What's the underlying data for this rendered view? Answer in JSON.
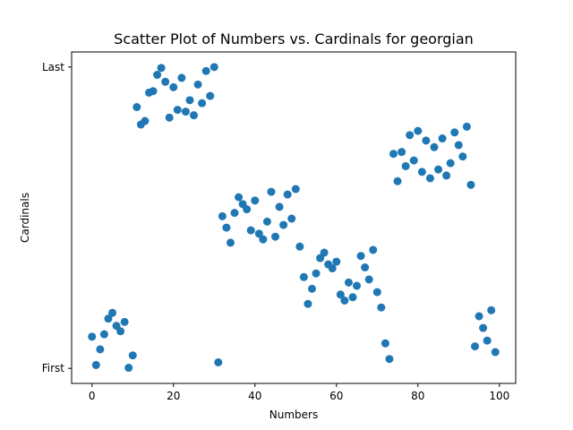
{
  "chart_data": {
    "type": "scatter",
    "title": "Scatter Plot of Numbers vs. Cardinals for georgian",
    "xlabel": "Numbers",
    "ylabel": "Cardinals",
    "xlim": [
      -5,
      104
    ],
    "ylim": [
      -0.05,
      1.05
    ],
    "x_ticks": [
      0,
      20,
      40,
      60,
      80,
      100
    ],
    "y_ticks": [
      {
        "value": 0,
        "label": "First"
      },
      {
        "value": 1,
        "label": "Last"
      }
    ],
    "marker_color": "#1f77b4",
    "grid": false,
    "points": [
      {
        "x": 0,
        "y": 0.105
      },
      {
        "x": 1,
        "y": 0.011
      },
      {
        "x": 2,
        "y": 0.063
      },
      {
        "x": 3,
        "y": 0.113
      },
      {
        "x": 4,
        "y": 0.165
      },
      {
        "x": 5,
        "y": 0.184
      },
      {
        "x": 6,
        "y": 0.141
      },
      {
        "x": 7,
        "y": 0.123
      },
      {
        "x": 8,
        "y": 0.154
      },
      {
        "x": 9,
        "y": 0.002
      },
      {
        "x": 10,
        "y": 0.043
      },
      {
        "x": 11,
        "y": 0.867
      },
      {
        "x": 12,
        "y": 0.809
      },
      {
        "x": 13,
        "y": 0.821
      },
      {
        "x": 14,
        "y": 0.915
      },
      {
        "x": 15,
        "y": 0.92
      },
      {
        "x": 16,
        "y": 0.974
      },
      {
        "x": 17,
        "y": 0.997
      },
      {
        "x": 18,
        "y": 0.951
      },
      {
        "x": 19,
        "y": 0.832
      },
      {
        "x": 20,
        "y": 0.933
      },
      {
        "x": 21,
        "y": 0.858
      },
      {
        "x": 22,
        "y": 0.964
      },
      {
        "x": 23,
        "y": 0.852
      },
      {
        "x": 24,
        "y": 0.89
      },
      {
        "x": 25,
        "y": 0.84
      },
      {
        "x": 26,
        "y": 0.942
      },
      {
        "x": 27,
        "y": 0.88
      },
      {
        "x": 28,
        "y": 0.987
      },
      {
        "x": 29,
        "y": 0.904
      },
      {
        "x": 30,
        "y": 1.0
      },
      {
        "x": 31,
        "y": 0.02
      },
      {
        "x": 32,
        "y": 0.505
      },
      {
        "x": 33,
        "y": 0.467
      },
      {
        "x": 34,
        "y": 0.417
      },
      {
        "x": 35,
        "y": 0.516
      },
      {
        "x": 36,
        "y": 0.568
      },
      {
        "x": 37,
        "y": 0.545
      },
      {
        "x": 38,
        "y": 0.528
      },
      {
        "x": 39,
        "y": 0.458
      },
      {
        "x": 40,
        "y": 0.557
      },
      {
        "x": 41,
        "y": 0.447
      },
      {
        "x": 42,
        "y": 0.428
      },
      {
        "x": 43,
        "y": 0.487
      },
      {
        "x": 44,
        "y": 0.586
      },
      {
        "x": 45,
        "y": 0.437
      },
      {
        "x": 46,
        "y": 0.536
      },
      {
        "x": 47,
        "y": 0.476
      },
      {
        "x": 48,
        "y": 0.577
      },
      {
        "x": 49,
        "y": 0.497
      },
      {
        "x": 50,
        "y": 0.595
      },
      {
        "x": 51,
        "y": 0.404
      },
      {
        "x": 52,
        "y": 0.303
      },
      {
        "x": 53,
        "y": 0.214
      },
      {
        "x": 54,
        "y": 0.264
      },
      {
        "x": 55,
        "y": 0.315
      },
      {
        "x": 56,
        "y": 0.366
      },
      {
        "x": 57,
        "y": 0.384
      },
      {
        "x": 58,
        "y": 0.345
      },
      {
        "x": 59,
        "y": 0.332
      },
      {
        "x": 60,
        "y": 0.354
      },
      {
        "x": 61,
        "y": 0.245
      },
      {
        "x": 62,
        "y": 0.225
      },
      {
        "x": 63,
        "y": 0.285
      },
      {
        "x": 64,
        "y": 0.236
      },
      {
        "x": 65,
        "y": 0.274
      },
      {
        "x": 66,
        "y": 0.373
      },
      {
        "x": 67,
        "y": 0.335
      },
      {
        "x": 68,
        "y": 0.295
      },
      {
        "x": 69,
        "y": 0.393
      },
      {
        "x": 70,
        "y": 0.253
      },
      {
        "x": 71,
        "y": 0.202
      },
      {
        "x": 72,
        "y": 0.083
      },
      {
        "x": 73,
        "y": 0.031
      },
      {
        "x": 74,
        "y": 0.712
      },
      {
        "x": 75,
        "y": 0.621
      },
      {
        "x": 76,
        "y": 0.718
      },
      {
        "x": 77,
        "y": 0.671
      },
      {
        "x": 78,
        "y": 0.774
      },
      {
        "x": 79,
        "y": 0.69
      },
      {
        "x": 80,
        "y": 0.788
      },
      {
        "x": 81,
        "y": 0.652
      },
      {
        "x": 82,
        "y": 0.756
      },
      {
        "x": 83,
        "y": 0.631
      },
      {
        "x": 84,
        "y": 0.734
      },
      {
        "x": 85,
        "y": 0.66
      },
      {
        "x": 86,
        "y": 0.763
      },
      {
        "x": 87,
        "y": 0.64
      },
      {
        "x": 88,
        "y": 0.681
      },
      {
        "x": 89,
        "y": 0.783
      },
      {
        "x": 90,
        "y": 0.741
      },
      {
        "x": 91,
        "y": 0.703
      },
      {
        "x": 92,
        "y": 0.802
      },
      {
        "x": 93,
        "y": 0.609
      },
      {
        "x": 94,
        "y": 0.073
      },
      {
        "x": 95,
        "y": 0.173
      },
      {
        "x": 96,
        "y": 0.134
      },
      {
        "x": 97,
        "y": 0.092
      },
      {
        "x": 98,
        "y": 0.193
      },
      {
        "x": 99,
        "y": 0.054
      }
    ]
  }
}
